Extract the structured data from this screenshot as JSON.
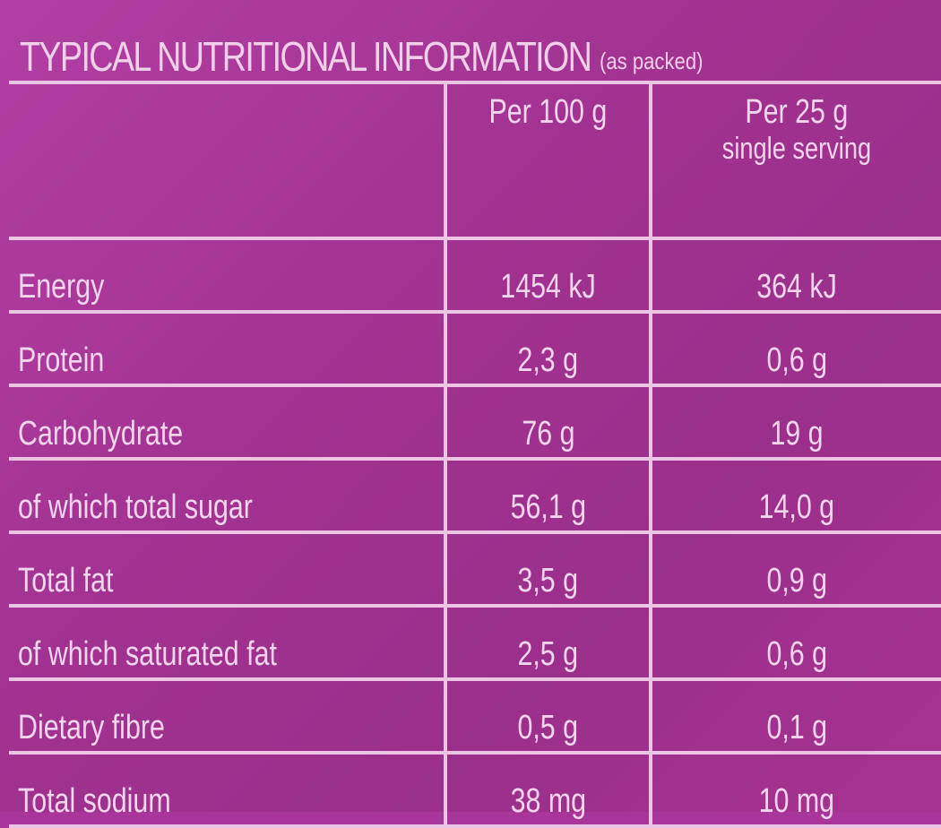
{
  "title": "TYPICAL NUTRITIONAL INFORMATION",
  "title_note": "(as packed)",
  "columns": {
    "per_100g": "Per 100 g",
    "per_serving": "Per 25 g",
    "per_serving_note": "single serving"
  },
  "rows": [
    {
      "nutrient": "Energy",
      "per_100g": "1454 kJ",
      "per_serving": "364 kJ"
    },
    {
      "nutrient": "Protein",
      "per_100g": "2,3 g",
      "per_serving": "0,6 g"
    },
    {
      "nutrient": "Carbohydrate",
      "per_100g": "76 g",
      "per_serving": "19 g"
    },
    {
      "nutrient": "of which total sugar",
      "per_100g": "56,1 g",
      "per_serving": "14,0 g"
    },
    {
      "nutrient": "Total fat",
      "per_100g": "3,5 g",
      "per_serving": "0,9 g"
    },
    {
      "nutrient": "of which saturated fat",
      "per_100g": "2,5 g",
      "per_serving": "0,6 g"
    },
    {
      "nutrient": "Dietary fibre",
      "per_100g": "0,5 g",
      "per_serving": "0,1 g"
    },
    {
      "nutrient": "Total sodium",
      "per_100g": "38 mg",
      "per_serving": "10 mg"
    }
  ],
  "colors": {
    "background": "#a8359a",
    "lines": "#ecc4e4",
    "text": "#f2d5ec"
  }
}
